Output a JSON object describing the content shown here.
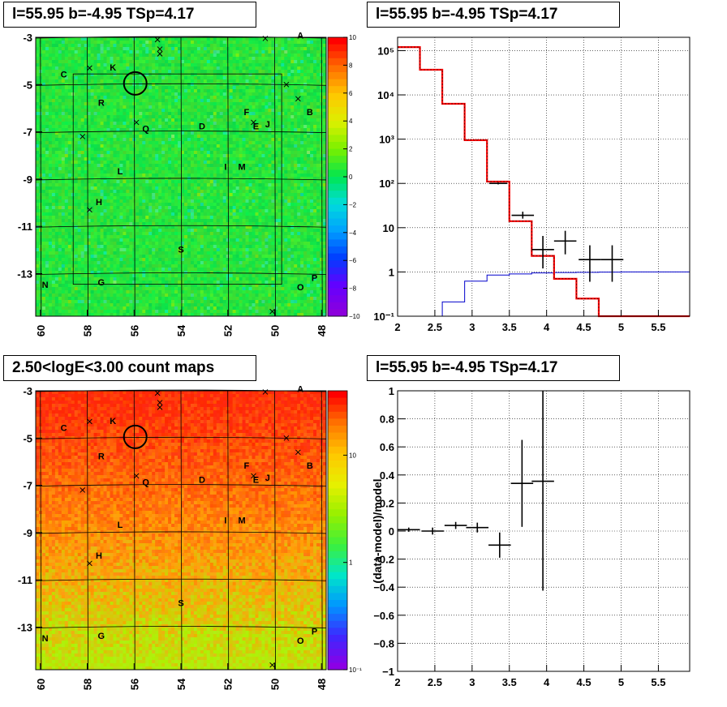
{
  "panels": {
    "top_left_title": "l=55.95 b=-4.95 TSp=4.17",
    "top_right_title": "l=55.95 b=-4.95 TSp=4.17",
    "bottom_left_title": "2.50<logE<3.00 count maps",
    "bottom_right_title": "l=55.95 b=-4.95 TSp=4.17"
  },
  "chart_data": [
    {
      "type": "heatmap",
      "title": "l=55.95 b=-4.95 TSp=4.17",
      "x_ticks": [
        "60",
        "58",
        "56",
        "54",
        "52",
        "50",
        "48"
      ],
      "x_tick_values": [
        60,
        58,
        56,
        54,
        52,
        50,
        48
      ],
      "y_ticks": [
        "-3",
        "-5",
        "-7",
        "-9",
        "-11",
        "-13"
      ],
      "y_tick_values": [
        -3,
        -5,
        -7,
        -9,
        -11,
        -13
      ],
      "xlim": [
        60.2,
        47.8
      ],
      "ylim": [
        -14.8,
        -3
      ],
      "colorbar_ticks": [
        "10",
        "8",
        "6",
        "4",
        "2",
        "0",
        "−2",
        "−4",
        "−6",
        "−8",
        "−10"
      ],
      "colorbar_values": [
        10,
        8,
        6,
        4,
        2,
        0,
        -2,
        -4,
        -6,
        -8,
        -10
      ],
      "source_labels": [
        {
          "label": "A",
          "l": 48.9,
          "b": -3.05
        },
        {
          "label": "B",
          "l": 48.5,
          "b": -6.3
        },
        {
          "label": "C",
          "l": 59.0,
          "b": -4.7
        },
        {
          "label": "D",
          "l": 53.1,
          "b": -6.9
        },
        {
          "label": "E",
          "l": 50.8,
          "b": -6.9
        },
        {
          "label": "F",
          "l": 51.2,
          "b": -6.3
        },
        {
          "label": "G",
          "l": 57.4,
          "b": -13.5
        },
        {
          "label": "H",
          "l": 57.5,
          "b": -10.1
        },
        {
          "label": "I",
          "l": 52.1,
          "b": -8.6
        },
        {
          "label": "J",
          "l": 50.3,
          "b": -6.8
        },
        {
          "label": "K",
          "l": 56.9,
          "b": -4.4
        },
        {
          "label": "L",
          "l": 56.6,
          "b": -8.8
        },
        {
          "label": "M",
          "l": 51.4,
          "b": -8.6
        },
        {
          "label": "N",
          "l": 59.8,
          "b": -13.6
        },
        {
          "label": "O",
          "l": 48.9,
          "b": -13.7
        },
        {
          "label": "P",
          "l": 48.3,
          "b": -13.3
        },
        {
          "label": "Q",
          "l": 55.5,
          "b": -7.0
        },
        {
          "label": "R",
          "l": 57.4,
          "b": -5.9
        },
        {
          "label": "S",
          "l": 54.0,
          "b": -12.1
        }
      ]
    },
    {
      "type": "line",
      "title": "l=55.95 b=-4.95 TSp=4.17",
      "xlim": [
        2,
        5.92
      ],
      "yscale": "log",
      "ylim": [
        0.1,
        200000
      ],
      "x_ticks": [
        "2",
        "2.5",
        "3",
        "3.5",
        "4",
        "4.5",
        "5",
        "5.5"
      ],
      "x_tick_values": [
        2,
        2.5,
        3,
        3.5,
        4,
        4.5,
        5,
        5.5
      ],
      "y_ticks": [
        "10⁻¹",
        "1",
        "10",
        "10²",
        "10³",
        "10⁴",
        "10⁵"
      ],
      "y_tick_values": [
        0.1,
        1,
        10,
        100,
        1000,
        10000,
        100000
      ],
      "model_red_steps": {
        "edges": [
          2,
          2.3,
          2.6,
          2.9,
          3.2,
          3.5,
          3.8,
          4.1,
          4.4,
          4.7,
          5.0,
          5.92
        ],
        "values": [
          120000,
          37000,
          6300,
          950,
          110,
          14,
          2.3,
          0.7,
          0.25,
          0.1,
          0.1
        ]
      },
      "model_blue_steps": {
        "edges": [
          2.6,
          2.9,
          3.2,
          3.5,
          3.8,
          4.1,
          4.4,
          4.7,
          5.0,
          5.92
        ],
        "values": [
          0.21,
          0.62,
          0.85,
          0.9,
          0.95,
          0.97,
          0.98,
          0.99,
          1.0
        ]
      },
      "data_points": [
        {
          "x": 3.35,
          "y": 100,
          "xerr": 0.12,
          "ylo": 95,
          "yhi": 105
        },
        {
          "x": 3.68,
          "y": 19,
          "xerr": 0.15,
          "ylo": 16,
          "yhi": 23
        },
        {
          "x": 3.95,
          "y": 3.2,
          "xerr": 0.15,
          "ylo": 1.2,
          "yhi": 6.5
        },
        {
          "x": 4.25,
          "y": 5.0,
          "xerr": 0.15,
          "ylo": 2.5,
          "yhi": 8.5
        },
        {
          "x": 4.58,
          "y": 1.9,
          "xerr": 0.15,
          "ylo": 0.6,
          "yhi": 4.0
        },
        {
          "x": 4.88,
          "y": 1.9,
          "xerr": 0.15,
          "ylo": 0.6,
          "yhi": 4.0
        }
      ]
    },
    {
      "type": "heatmap",
      "title": "2.50<logE<3.00 count maps",
      "x_ticks": [
        "60",
        "58",
        "56",
        "54",
        "52",
        "50",
        "48"
      ],
      "x_tick_values": [
        60,
        58,
        56,
        54,
        52,
        50,
        48
      ],
      "y_ticks": [
        "-3",
        "-5",
        "-7",
        "-9",
        "-11",
        "-13"
      ],
      "y_tick_values": [
        -3,
        -5,
        -7,
        -9,
        -11,
        -13
      ],
      "xlim": [
        60.2,
        47.8
      ],
      "ylim": [
        -14.8,
        -3
      ],
      "colorscale": "log",
      "colorbar_ticks": [
        "10",
        "1",
        "10⁻¹"
      ],
      "colorbar_values": [
        10,
        1,
        0.1
      ]
    },
    {
      "type": "scatter",
      "title": "l=55.95 b=-4.95 TSp=4.17",
      "ylabel": "(data-model)/model",
      "xlim": [
        2,
        5.92
      ],
      "ylim": [
        -1,
        1
      ],
      "x_ticks": [
        "2",
        "2.5",
        "3",
        "3.5",
        "4",
        "4.5",
        "5",
        "5.5"
      ],
      "x_tick_values": [
        2,
        2.5,
        3,
        3.5,
        4,
        4.5,
        5,
        5.5
      ],
      "y_ticks": [
        "−1",
        "−0.8",
        "−0.6",
        "−0.4",
        "−0.2",
        "0",
        "0.2",
        "0.4",
        "0.6",
        "0.8",
        "1"
      ],
      "y_tick_values": [
        -1,
        -0.8,
        -0.6,
        -0.4,
        -0.2,
        0,
        0.2,
        0.4,
        0.6,
        0.8,
        1
      ],
      "points": [
        {
          "x": 2.15,
          "y": 0.01,
          "xerr": 0.15,
          "err": 0.015
        },
        {
          "x": 2.47,
          "y": 0.0,
          "xerr": 0.15,
          "err": 0.025
        },
        {
          "x": 2.78,
          "y": 0.04,
          "xerr": 0.15,
          "err": 0.025
        },
        {
          "x": 3.07,
          "y": 0.025,
          "xerr": 0.15,
          "err": 0.035
        },
        {
          "x": 3.37,
          "y": -0.1,
          "xerr": 0.15,
          "err": 0.09
        },
        {
          "x": 3.67,
          "y": 0.34,
          "xerr": 0.15,
          "err": 0.31
        },
        {
          "x": 3.95,
          "y": 0.355,
          "xerr": 0.15,
          "err": 0.78
        }
      ]
    }
  ]
}
